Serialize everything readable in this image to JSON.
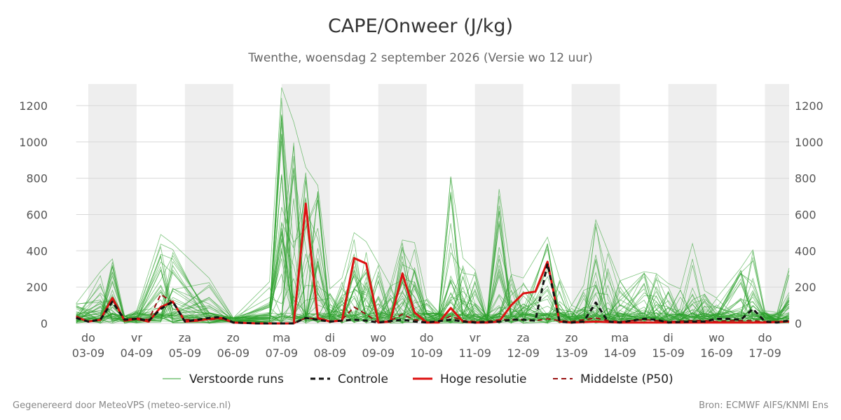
{
  "header": {
    "title": "CAPE/Onweer (J/kg)",
    "subtitle": "Twenthe, woensdag  2 september 2026 (Versie wo 12 uur)"
  },
  "footer": {
    "left": "Gegenereerd door MeteoVPS (meteo-service.nl)",
    "right": "Bron: ECMWF AIFS/KNMI Ens"
  },
  "chart_data": {
    "type": "line",
    "x_unit": "days (0 = do 03-09 00h)",
    "xlim": [
      -0.25,
      14.5
    ],
    "ylim": [
      0,
      1300
    ],
    "y_ticks": [
      0,
      200,
      400,
      600,
      800,
      1000,
      1200
    ],
    "x_ticks": [
      {
        "x": 0,
        "day": "do",
        "date": "03-09"
      },
      {
        "x": 1,
        "day": "vr",
        "date": "04-09"
      },
      {
        "x": 2,
        "day": "za",
        "date": "05-09"
      },
      {
        "x": 3,
        "day": "zo",
        "date": "06-09"
      },
      {
        "x": 4,
        "day": "ma",
        "date": "07-09"
      },
      {
        "x": 5,
        "day": "di",
        "date": "08-09"
      },
      {
        "x": 6,
        "day": "wo",
        "date": "09-09"
      },
      {
        "x": 7,
        "day": "do",
        "date": "10-09"
      },
      {
        "x": 8,
        "day": "vr",
        "date": "11-09"
      },
      {
        "x": 9,
        "day": "za",
        "date": "12-09"
      },
      {
        "x": 10,
        "day": "zo",
        "date": "13-09"
      },
      {
        "x": 11,
        "day": "ma",
        "date": "14-09"
      },
      {
        "x": 12,
        "day": "di",
        "date": "15-09"
      },
      {
        "x": 13,
        "day": "wo",
        "date": "16-09"
      },
      {
        "x": 14,
        "day": "do",
        "date": "17-09"
      }
    ],
    "shaded_days": [
      [
        0,
        1
      ],
      [
        2,
        3
      ],
      [
        4,
        5
      ],
      [
        6,
        7
      ],
      [
        8,
        9
      ],
      [
        10,
        11
      ],
      [
        12,
        13
      ],
      [
        14,
        14.5
      ]
    ],
    "grid": true,
    "legend_position": "bottom",
    "series": [
      {
        "name": "Hoge resolutie",
        "color": "#dd1111",
        "style": "solid",
        "points": [
          [
            -0.25,
            35
          ],
          [
            0,
            10
          ],
          [
            0.25,
            20
          ],
          [
            0.5,
            140
          ],
          [
            0.75,
            15
          ],
          [
            1,
            25
          ],
          [
            1.25,
            10
          ],
          [
            1.5,
            90
          ],
          [
            1.75,
            120
          ],
          [
            2,
            10
          ],
          [
            2.25,
            15
          ],
          [
            2.5,
            25
          ],
          [
            2.75,
            30
          ],
          [
            3,
            5
          ],
          [
            3.5,
            0
          ],
          [
            4,
            0
          ],
          [
            4.25,
            0
          ],
          [
            4.5,
            660
          ],
          [
            4.75,
            30
          ],
          [
            5,
            10
          ],
          [
            5.25,
            15
          ],
          [
            5.5,
            360
          ],
          [
            5.75,
            330
          ],
          [
            6,
            5
          ],
          [
            6.25,
            10
          ],
          [
            6.5,
            275
          ],
          [
            6.75,
            60
          ],
          [
            7,
            5
          ],
          [
            7.25,
            5
          ],
          [
            7.5,
            85
          ],
          [
            7.75,
            10
          ],
          [
            8,
            5
          ],
          [
            8.25,
            5
          ],
          [
            8.5,
            10
          ],
          [
            8.75,
            100
          ],
          [
            9,
            165
          ],
          [
            9.25,
            175
          ],
          [
            9.5,
            340
          ],
          [
            9.75,
            10
          ],
          [
            10,
            5
          ],
          [
            10.5,
            10
          ],
          [
            11,
            5
          ],
          [
            11.5,
            5
          ],
          [
            12,
            5
          ],
          [
            12.5,
            5
          ],
          [
            13,
            5
          ],
          [
            13.5,
            5
          ],
          [
            14,
            5
          ],
          [
            14.5,
            10
          ]
        ]
      },
      {
        "name": "Controle",
        "color": "#111111",
        "style": "dashed",
        "points": [
          [
            -0.25,
            30
          ],
          [
            0,
            10
          ],
          [
            0.25,
            20
          ],
          [
            0.5,
            120
          ],
          [
            0.75,
            20
          ],
          [
            1,
            25
          ],
          [
            1.25,
            15
          ],
          [
            1.5,
            80
          ],
          [
            1.75,
            120
          ],
          [
            2,
            10
          ],
          [
            2.25,
            20
          ],
          [
            2.5,
            30
          ],
          [
            2.75,
            35
          ],
          [
            3,
            5
          ],
          [
            3.5,
            0
          ],
          [
            4,
            0
          ],
          [
            4.25,
            0
          ],
          [
            4.5,
            30
          ],
          [
            4.75,
            20
          ],
          [
            5,
            10
          ],
          [
            5.5,
            20
          ],
          [
            5.75,
            15
          ],
          [
            6,
            5
          ],
          [
            6.5,
            20
          ],
          [
            6.75,
            10
          ],
          [
            7,
            5
          ],
          [
            7.5,
            20
          ],
          [
            7.75,
            10
          ],
          [
            8,
            5
          ],
          [
            8.5,
            10
          ],
          [
            8.75,
            20
          ],
          [
            9,
            20
          ],
          [
            9.25,
            15
          ],
          [
            9.5,
            330
          ],
          [
            9.75,
            10
          ],
          [
            10,
            5
          ],
          [
            10.25,
            10
          ],
          [
            10.5,
            115
          ],
          [
            10.75,
            10
          ],
          [
            11,
            5
          ],
          [
            11.5,
            25
          ],
          [
            11.75,
            20
          ],
          [
            12,
            5
          ],
          [
            12.5,
            10
          ],
          [
            12.75,
            10
          ],
          [
            13,
            25
          ],
          [
            13.25,
            25
          ],
          [
            13.5,
            20
          ],
          [
            13.75,
            80
          ],
          [
            14,
            10
          ],
          [
            14.25,
            5
          ],
          [
            14.5,
            15
          ]
        ]
      },
      {
        "name": "Middelste (P50)",
        "color": "#991111",
        "style": "dashed",
        "points": [
          [
            -0.25,
            40
          ],
          [
            0,
            10
          ],
          [
            0.25,
            25
          ],
          [
            0.5,
            130
          ],
          [
            0.75,
            20
          ],
          [
            1,
            30
          ],
          [
            1.25,
            20
          ],
          [
            1.5,
            160
          ],
          [
            1.75,
            115
          ],
          [
            2,
            20
          ],
          [
            2.25,
            20
          ],
          [
            2.5,
            20
          ],
          [
            2.75,
            25
          ],
          [
            3,
            5
          ],
          [
            3.5,
            0
          ],
          [
            4,
            0
          ],
          [
            4.25,
            0
          ],
          [
            4.5,
            30
          ],
          [
            4.75,
            25
          ],
          [
            5,
            10
          ],
          [
            5.25,
            20
          ],
          [
            5.5,
            90
          ],
          [
            5.75,
            50
          ],
          [
            6,
            5
          ],
          [
            6.25,
            15
          ],
          [
            6.5,
            50
          ],
          [
            6.75,
            20
          ],
          [
            7,
            10
          ],
          [
            7.25,
            10
          ],
          [
            7.5,
            40
          ],
          [
            7.75,
            15
          ],
          [
            8,
            10
          ],
          [
            8.25,
            10
          ],
          [
            8.5,
            20
          ],
          [
            8.75,
            20
          ],
          [
            9,
            20
          ],
          [
            9.25,
            15
          ],
          [
            9.5,
            25
          ],
          [
            9.75,
            15
          ],
          [
            10,
            10
          ],
          [
            10.5,
            30
          ],
          [
            10.75,
            15
          ],
          [
            11,
            10
          ],
          [
            11.5,
            20
          ],
          [
            11.75,
            15
          ],
          [
            12,
            10
          ],
          [
            12.5,
            15
          ],
          [
            12.75,
            15
          ],
          [
            13,
            10
          ],
          [
            13.25,
            15
          ],
          [
            13.5,
            15
          ],
          [
            13.75,
            15
          ],
          [
            14,
            10
          ],
          [
            14.5,
            10
          ]
        ]
      }
    ],
    "ensemble": {
      "name": "Verstoorde runs",
      "color": "#2ca02c",
      "peaks": [
        [
          -0.25,
          110
        ],
        [
          0.25,
          285
        ],
        [
          0.5,
          355
        ],
        [
          0.75,
          40
        ],
        [
          1,
          70
        ],
        [
          1.5,
          490
        ],
        [
          1.75,
          440
        ],
        [
          2.5,
          250
        ],
        [
          3,
          30
        ],
        [
          3.75,
          230
        ],
        [
          4,
          1300
        ],
        [
          4.25,
          1110
        ],
        [
          4.5,
          860
        ],
        [
          4.75,
          760
        ],
        [
          5,
          190
        ],
        [
          5.25,
          250
        ],
        [
          5.5,
          500
        ],
        [
          5.75,
          450
        ],
        [
          6,
          330
        ],
        [
          6.25,
          210
        ],
        [
          6.5,
          460
        ],
        [
          6.75,
          445
        ],
        [
          7,
          140
        ],
        [
          7.25,
          60
        ],
        [
          7.5,
          810
        ],
        [
          7.75,
          360
        ],
        [
          8,
          295
        ],
        [
          8.25,
          50
        ],
        [
          8.5,
          740
        ],
        [
          8.75,
          270
        ],
        [
          9,
          250
        ],
        [
          9.5,
          475
        ],
        [
          9.75,
          250
        ],
        [
          10,
          100
        ],
        [
          10.25,
          210
        ],
        [
          10.5,
          570
        ],
        [
          10.75,
          400
        ],
        [
          11,
          235
        ],
        [
          11.5,
          285
        ],
        [
          11.75,
          275
        ],
        [
          12,
          220
        ],
        [
          12.25,
          190
        ],
        [
          12.5,
          440
        ],
        [
          12.75,
          180
        ],
        [
          13,
          140
        ],
        [
          13.5,
          305
        ],
        [
          13.75,
          405
        ],
        [
          14,
          70
        ],
        [
          14.25,
          60
        ],
        [
          14.5,
          305
        ]
      ]
    }
  }
}
